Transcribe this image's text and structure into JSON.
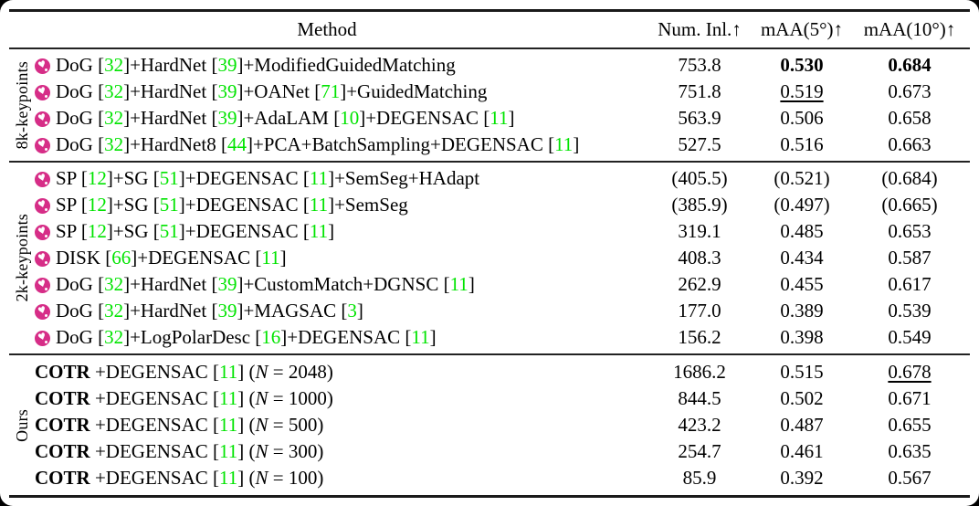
{
  "colors": {
    "cite_green": "#00e400",
    "icon_pink": "#d62d87",
    "rule_black": "#1a1a1a"
  },
  "icons": {
    "row_badge": "heart-in-pink-circle"
  },
  "header": {
    "method": "Method",
    "cols": [
      "Num. Inl.↑",
      "mAA(5°)↑",
      "mAA(10°)↑"
    ]
  },
  "groups": [
    {
      "label": "8k-keypoints",
      "rows": [
        {
          "icon": true,
          "method": [
            {
              "t": "DoG ["
            },
            {
              "t": "32",
              "s": "g"
            },
            {
              "t": "]+HardNet ["
            },
            {
              "t": "39",
              "s": "g"
            },
            {
              "t": "]+ModifiedGuidedMatching"
            }
          ],
          "vals": [
            [
              {
                "t": "753.8"
              }
            ],
            [
              {
                "t": "0.530",
                "s": "b"
              }
            ],
            [
              {
                "t": "0.684",
                "s": "b"
              }
            ]
          ]
        },
        {
          "icon": true,
          "method": [
            {
              "t": "DoG ["
            },
            {
              "t": "32",
              "s": "g"
            },
            {
              "t": "]+HardNet ["
            },
            {
              "t": "39",
              "s": "g"
            },
            {
              "t": "]+OANet ["
            },
            {
              "t": "71",
              "s": "g"
            },
            {
              "t": "]+GuidedMatching"
            }
          ],
          "vals": [
            [
              {
                "t": "751.8"
              }
            ],
            [
              {
                "t": "0.519",
                "s": "u"
              }
            ],
            [
              {
                "t": "0.673"
              }
            ]
          ]
        },
        {
          "icon": true,
          "method": [
            {
              "t": "DoG ["
            },
            {
              "t": "32",
              "s": "g"
            },
            {
              "t": "]+HardNet ["
            },
            {
              "t": "39",
              "s": "g"
            },
            {
              "t": "]+AdaLAM ["
            },
            {
              "t": "10",
              "s": "g"
            },
            {
              "t": "]+DEGENSAC ["
            },
            {
              "t": "11",
              "s": "g"
            },
            {
              "t": "]"
            }
          ],
          "vals": [
            [
              {
                "t": "563.9"
              }
            ],
            [
              {
                "t": "0.506"
              }
            ],
            [
              {
                "t": "0.658"
              }
            ]
          ]
        },
        {
          "icon": true,
          "method": [
            {
              "t": "DoG ["
            },
            {
              "t": "32",
              "s": "g"
            },
            {
              "t": "]+HardNet8 ["
            },
            {
              "t": "44",
              "s": "g"
            },
            {
              "t": "]+PCA+BatchSampling+DEGENSAC ["
            },
            {
              "t": "11",
              "s": "g"
            },
            {
              "t": "]"
            }
          ],
          "vals": [
            [
              {
                "t": "527.5"
              }
            ],
            [
              {
                "t": "0.516"
              }
            ],
            [
              {
                "t": "0.663"
              }
            ]
          ]
        }
      ]
    },
    {
      "label": "2k-keypoints",
      "rows": [
        {
          "icon": true,
          "method": [
            {
              "t": "SP ["
            },
            {
              "t": "12",
              "s": "g"
            },
            {
              "t": "]+SG ["
            },
            {
              "t": "51",
              "s": "g"
            },
            {
              "t": "]+DEGENSAC ["
            },
            {
              "t": "11",
              "s": "g"
            },
            {
              "t": "]+SemSeg+HAdapt"
            }
          ],
          "vals": [
            [
              {
                "t": "(405.5)"
              }
            ],
            [
              {
                "t": "(0.521)"
              }
            ],
            [
              {
                "t": "(0.684)"
              }
            ]
          ]
        },
        {
          "icon": true,
          "method": [
            {
              "t": "SP ["
            },
            {
              "t": "12",
              "s": "g"
            },
            {
              "t": "]+SG ["
            },
            {
              "t": "51",
              "s": "g"
            },
            {
              "t": "]+DEGENSAC ["
            },
            {
              "t": "11",
              "s": "g"
            },
            {
              "t": "]+SemSeg"
            }
          ],
          "vals": [
            [
              {
                "t": "(385.9)"
              }
            ],
            [
              {
                "t": "(0.497)"
              }
            ],
            [
              {
                "t": "(0.665)"
              }
            ]
          ]
        },
        {
          "icon": true,
          "method": [
            {
              "t": "SP ["
            },
            {
              "t": "12",
              "s": "g"
            },
            {
              "t": "]+SG ["
            },
            {
              "t": "51",
              "s": "g"
            },
            {
              "t": "]+DEGENSAC ["
            },
            {
              "t": "11",
              "s": "g"
            },
            {
              "t": "]"
            }
          ],
          "vals": [
            [
              {
                "t": "319.1"
              }
            ],
            [
              {
                "t": "0.485"
              }
            ],
            [
              {
                "t": "0.653"
              }
            ]
          ]
        },
        {
          "icon": true,
          "method": [
            {
              "t": "DISK ["
            },
            {
              "t": "66",
              "s": "g"
            },
            {
              "t": "]+DEGENSAC ["
            },
            {
              "t": "11",
              "s": "g"
            },
            {
              "t": "]"
            }
          ],
          "vals": [
            [
              {
                "t": "408.3"
              }
            ],
            [
              {
                "t": "0.434"
              }
            ],
            [
              {
                "t": "0.587"
              }
            ]
          ]
        },
        {
          "icon": true,
          "method": [
            {
              "t": "DoG ["
            },
            {
              "t": "32",
              "s": "g"
            },
            {
              "t": "]+HardNet ["
            },
            {
              "t": "39",
              "s": "g"
            },
            {
              "t": "]+CustomMatch+DGNSC ["
            },
            {
              "t": "11",
              "s": "g"
            },
            {
              "t": "]"
            }
          ],
          "vals": [
            [
              {
                "t": "262.9"
              }
            ],
            [
              {
                "t": "0.455"
              }
            ],
            [
              {
                "t": "0.617"
              }
            ]
          ]
        },
        {
          "icon": true,
          "method": [
            {
              "t": "DoG ["
            },
            {
              "t": "32",
              "s": "g"
            },
            {
              "t": "]+HardNet ["
            },
            {
              "t": "39",
              "s": "g"
            },
            {
              "t": "]+MAGSAC ["
            },
            {
              "t": "3",
              "s": "g"
            },
            {
              "t": "]"
            }
          ],
          "vals": [
            [
              {
                "t": "177.0"
              }
            ],
            [
              {
                "t": "0.389"
              }
            ],
            [
              {
                "t": "0.539"
              }
            ]
          ]
        },
        {
          "icon": true,
          "method": [
            {
              "t": "DoG ["
            },
            {
              "t": "32",
              "s": "g"
            },
            {
              "t": "]+LogPolarDesc ["
            },
            {
              "t": "16",
              "s": "g"
            },
            {
              "t": "]+DEGENSAC ["
            },
            {
              "t": "11",
              "s": "g"
            },
            {
              "t": "]"
            }
          ],
          "vals": [
            [
              {
                "t": "156.2"
              }
            ],
            [
              {
                "t": "0.398"
              }
            ],
            [
              {
                "t": "0.549"
              }
            ]
          ]
        }
      ]
    },
    {
      "label": "Ours",
      "rows": [
        {
          "icon": false,
          "method": [
            {
              "t": "COTR",
              "s": "b"
            },
            {
              "t": " +DEGENSAC ["
            },
            {
              "t": "11",
              "s": "g"
            },
            {
              "t": "] ("
            },
            {
              "t": "N",
              "s": "i"
            },
            {
              "t": " = 2048)"
            }
          ],
          "vals": [
            [
              {
                "t": "1686.2"
              }
            ],
            [
              {
                "t": "0.515"
              }
            ],
            [
              {
                "t": "0.678",
                "s": "u"
              }
            ]
          ]
        },
        {
          "icon": false,
          "method": [
            {
              "t": "COTR",
              "s": "b"
            },
            {
              "t": " +DEGENSAC ["
            },
            {
              "t": "11",
              "s": "g"
            },
            {
              "t": "] ("
            },
            {
              "t": "N",
              "s": "i"
            },
            {
              "t": " = 1000)"
            }
          ],
          "vals": [
            [
              {
                "t": "844.5"
              }
            ],
            [
              {
                "t": "0.502"
              }
            ],
            [
              {
                "t": "0.671"
              }
            ]
          ]
        },
        {
          "icon": false,
          "method": [
            {
              "t": "COTR",
              "s": "b"
            },
            {
              "t": " +DEGENSAC ["
            },
            {
              "t": "11",
              "s": "g"
            },
            {
              "t": "] ("
            },
            {
              "t": "N",
              "s": "i"
            },
            {
              "t": " = 500)"
            }
          ],
          "vals": [
            [
              {
                "t": "423.2"
              }
            ],
            [
              {
                "t": "0.487"
              }
            ],
            [
              {
                "t": "0.655"
              }
            ]
          ]
        },
        {
          "icon": false,
          "method": [
            {
              "t": "COTR",
              "s": "b"
            },
            {
              "t": " +DEGENSAC ["
            },
            {
              "t": "11",
              "s": "g"
            },
            {
              "t": "] ("
            },
            {
              "t": "N",
              "s": "i"
            },
            {
              "t": " = 300)"
            }
          ],
          "vals": [
            [
              {
                "t": "254.7"
              }
            ],
            [
              {
                "t": "0.461"
              }
            ],
            [
              {
                "t": "0.635"
              }
            ]
          ]
        },
        {
          "icon": false,
          "method": [
            {
              "t": "COTR",
              "s": "b"
            },
            {
              "t": " +DEGENSAC ["
            },
            {
              "t": "11",
              "s": "g"
            },
            {
              "t": "] ("
            },
            {
              "t": "N",
              "s": "i"
            },
            {
              "t": " = 100)"
            }
          ],
          "vals": [
            [
              {
                "t": "85.9"
              }
            ],
            [
              {
                "t": "0.392"
              }
            ],
            [
              {
                "t": "0.567"
              }
            ]
          ]
        }
      ]
    }
  ]
}
